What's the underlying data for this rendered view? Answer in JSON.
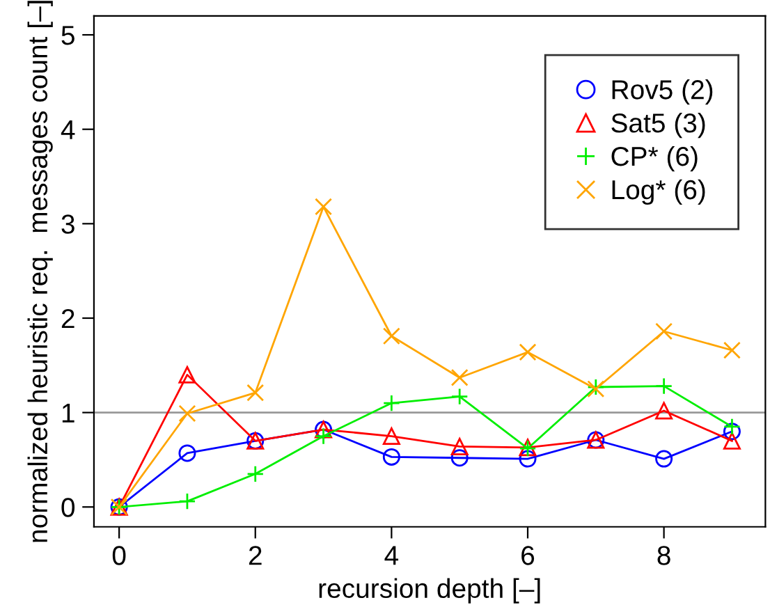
{
  "chart_data": {
    "type": "line",
    "xlabel": "recursion depth [–]",
    "ylabel": "normalized heuristic req.  messages count [–]",
    "x": [
      0,
      1,
      2,
      3,
      4,
      5,
      6,
      7,
      8,
      9
    ],
    "xlim": [
      -0.37,
      9.49
    ],
    "ylim": [
      -0.21,
      5.2
    ],
    "xticks": [
      0,
      2,
      4,
      6,
      8
    ],
    "yticks": [
      0,
      1,
      2,
      3,
      4,
      5
    ],
    "grid": false,
    "legend": "top right",
    "ref_lines": [
      {
        "axis": "y",
        "value": 1,
        "color": "#999999",
        "line_style": "solid"
      }
    ],
    "series": [
      {
        "name": "Rov5 (2)",
        "color": "#0000ff",
        "marker": "circle",
        "values": [
          0,
          0.57,
          0.7,
          0.82,
          0.53,
          0.52,
          0.51,
          0.71,
          0.51,
          0.8
        ]
      },
      {
        "name": "Sat5 (3)",
        "color": "#ff0000",
        "marker": "triangle",
        "values": [
          0,
          1.4,
          0.7,
          0.82,
          0.75,
          0.64,
          0.63,
          0.71,
          1.02,
          0.7
        ]
      },
      {
        "name": "CP* (6)",
        "color": "#00ee00",
        "marker": "plus",
        "values": [
          0,
          0.06,
          0.35,
          0.75,
          1.1,
          1.17,
          0.62,
          1.27,
          1.28,
          0.85
        ]
      },
      {
        "name": "Log* (6)",
        "color": "#ffa500",
        "marker": "cross",
        "values": [
          0,
          0.99,
          1.21,
          3.18,
          1.81,
          1.37,
          1.64,
          1.25,
          1.86,
          1.66
        ]
      }
    ]
  }
}
